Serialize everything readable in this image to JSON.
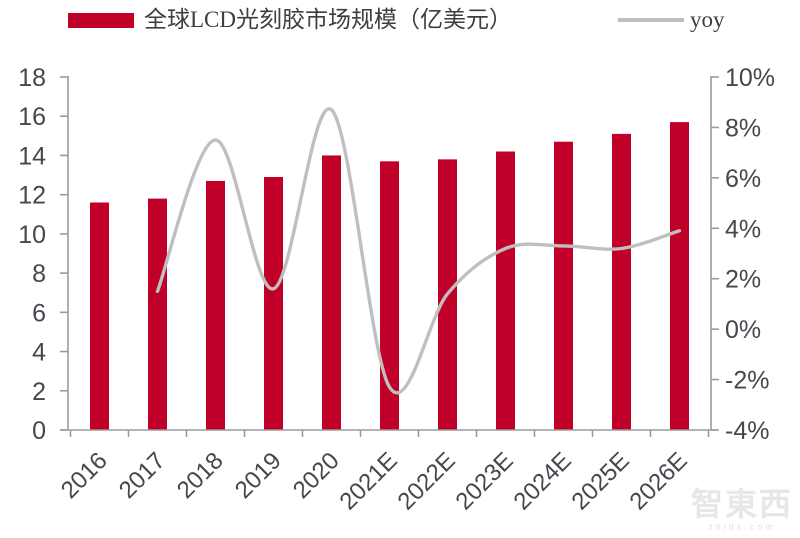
{
  "legend": {
    "bar_label": "全球LCD光刻胶市场规模（亿美元）",
    "line_label": "yoy"
  },
  "watermark": {
    "brand": "智東西",
    "domain": "zhidx.com"
  },
  "colors": {
    "bar": "#C00028",
    "line": "#BFBFBF",
    "axis": "#9B9B9B",
    "tick_text": "#46464E",
    "legend_text": "#3D3D42"
  },
  "chart_data": {
    "type": "combo",
    "title": "",
    "categories": [
      "2016",
      "2017",
      "2018",
      "2019",
      "2020",
      "2021E",
      "2022E",
      "2023E",
      "2024E",
      "2025E",
      "2026E"
    ],
    "series": [
      {
        "name": "全球LCD光刻胶市场规模（亿美元）",
        "type": "bar",
        "axis": "left",
        "values": [
          11.6,
          11.8,
          12.7,
          12.9,
          14.0,
          13.7,
          13.8,
          14.2,
          14.7,
          15.1,
          15.7
        ]
      },
      {
        "name": "yoy",
        "type": "line",
        "axis": "right",
        "unit": "%",
        "values": [
          null,
          1.5,
          7.5,
          1.6,
          8.7,
          -2.3,
          1.4,
          3.2,
          3.3,
          3.2,
          3.9
        ]
      }
    ],
    "left_axis": {
      "min": 0,
      "max": 18,
      "step": 2,
      "tick_labels": [
        "0",
        "2",
        "4",
        "6",
        "8",
        "10",
        "12",
        "14",
        "16",
        "18"
      ]
    },
    "right_axis": {
      "min": -4,
      "max": 10,
      "step": 2,
      "tick_labels": [
        "-4%",
        "-2%",
        "0%",
        "2%",
        "4%",
        "6%",
        "8%",
        "10%"
      ]
    },
    "grid": false,
    "legend_position": "top"
  }
}
